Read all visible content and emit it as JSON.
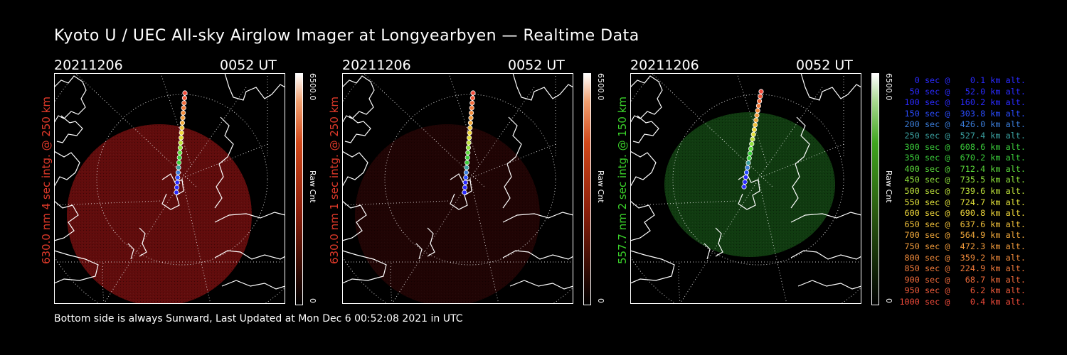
{
  "title": "Kyoto U / UEC All-sky Airglow Imager at Longyearbyen — Realtime Data",
  "panels": [
    {
      "date": "20211206",
      "time": "0052 UT",
      "side_label": "630.0 nm 4 sec intg. @ 250 km",
      "side_color": "#e23a2a",
      "glow": "#b11616",
      "glow_opacity": 0.55,
      "cbar_top": "6500.0",
      "cbar_mid": "Raw Cnt",
      "cbar_bot": "0",
      "cbar_color": "#d0481a"
    },
    {
      "date": "20211206",
      "time": "0052 UT",
      "side_label": "630.0 nm 1 sec intg. @ 250 km",
      "side_color": "#e23a2a",
      "glow": "#5a0a0a",
      "glow_opacity": 0.35,
      "cbar_top": "6500.0",
      "cbar_mid": "Raw Cnt",
      "cbar_bot": "0",
      "cbar_color": "#d0481a"
    },
    {
      "date": "20211206",
      "time": "0052 UT",
      "side_label": "557.7 nm 2 sec intg. @ 150 km",
      "side_color": "#3ad12a",
      "glow": "#1e6b1e",
      "glow_opacity": 0.55,
      "cbar_top": "6500.0",
      "cbar_mid": "Raw Cnt",
      "cbar_bot": "0",
      "cbar_color": "#3fa41e"
    }
  ],
  "footer": "Bottom side is always Sunward, Last Updated at Mon Dec  6 00:52:08 2021 in UTC",
  "legend": [
    {
      "text": "   0 sec @    0.1 km alt.",
      "color": "#2a2aff"
    },
    {
      "text": "  50 sec @   52.0 km alt.",
      "color": "#2a2aff"
    },
    {
      "text": " 100 sec @  160.2 km alt.",
      "color": "#2a2aff"
    },
    {
      "text": " 150 sec @  303.8 km alt.",
      "color": "#2a4cff"
    },
    {
      "text": " 200 sec @  426.0 km alt.",
      "color": "#3a7cd8"
    },
    {
      "text": " 250 sec @  527.4 km alt.",
      "color": "#3aa0a0"
    },
    {
      "text": " 300 sec @  608.6 km alt.",
      "color": "#3acc3a"
    },
    {
      "text": " 350 sec @  670.2 km alt.",
      "color": "#3acc3a"
    },
    {
      "text": " 400 sec @  712.4 km alt.",
      "color": "#5ad83a"
    },
    {
      "text": " 450 sec @  735.5 km alt.",
      "color": "#8ee03a"
    },
    {
      "text": " 500 sec @  739.6 km alt.",
      "color": "#bde03a"
    },
    {
      "text": " 550 sec @  724.7 km alt.",
      "color": "#e0e03a"
    },
    {
      "text": " 600 sec @  690.8 km alt.",
      "color": "#f0d83a"
    },
    {
      "text": " 650 sec @  637.6 km alt.",
      "color": "#f0c03a"
    },
    {
      "text": " 700 sec @  564.9 km alt.",
      "color": "#f0a83a"
    },
    {
      "text": " 750 sec @  472.3 km alt.",
      "color": "#f09a3a"
    },
    {
      "text": " 800 sec @  359.2 km alt.",
      "color": "#f08a3a"
    },
    {
      "text": " 850 sec @  224.9 km alt.",
      "color": "#f07a3a"
    },
    {
      "text": " 900 sec @   68.7 km alt.",
      "color": "#f06a3a"
    },
    {
      "text": " 950 sec @    6.2 km alt.",
      "color": "#f05a3a"
    },
    {
      "text": "1000 sec @    0.4 km alt.",
      "color": "#f04a3a"
    }
  ],
  "track_colors": [
    "#2a2aff",
    "#2a2aff",
    "#2a2aff",
    "#2a4cff",
    "#3a7cd8",
    "#3aa0a0",
    "#3acc3a",
    "#3acc3a",
    "#5ad83a",
    "#8ee03a",
    "#bde03a",
    "#e0e03a",
    "#f0d83a",
    "#f0c03a",
    "#f0a83a",
    "#f09a3a",
    "#f08a3a",
    "#f07a3a",
    "#f06a3a",
    "#f05a3a",
    "#f04a3a"
  ]
}
